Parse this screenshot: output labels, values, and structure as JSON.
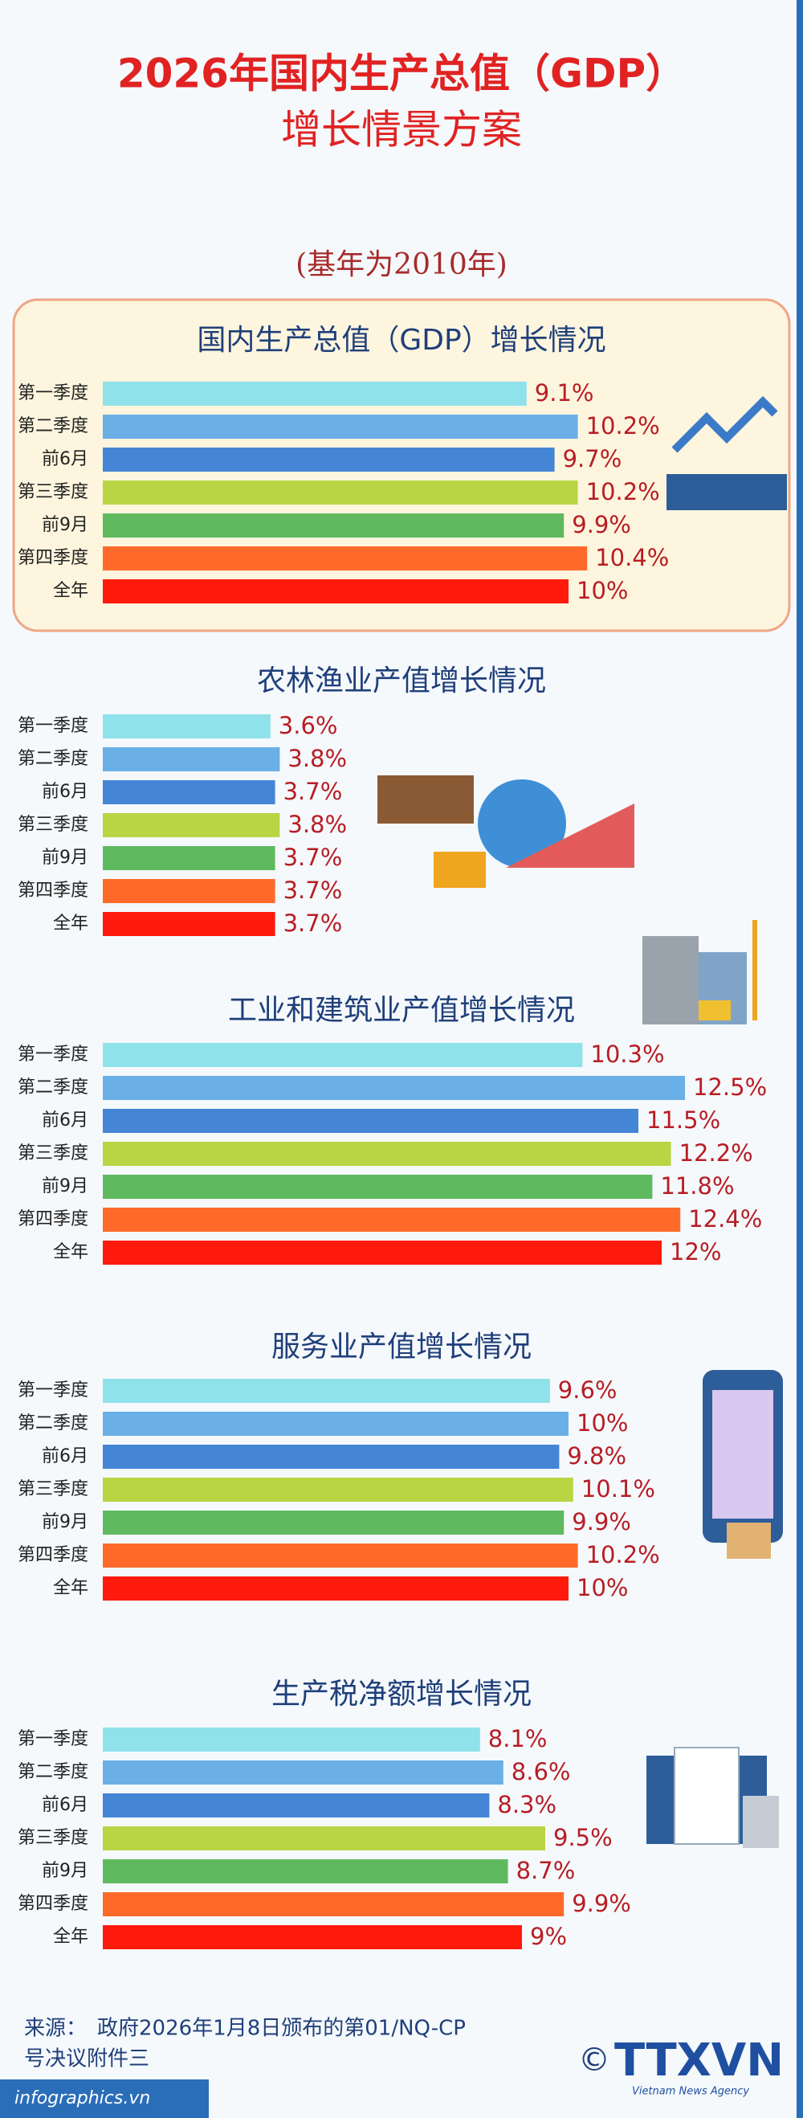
{
  "header": {
    "title_line1": "2026年国内生产总值（GDP）",
    "title_line2": "增长情景方案",
    "subtitle": "(基年为2010年)"
  },
  "chart_data": [
    {
      "type": "bar",
      "orientation": "horizontal",
      "title": "国内生产总值（GDP）增长情况",
      "categories": [
        "第一季度",
        "第二季度",
        "前6月",
        "第三季度",
        "前9月",
        "第四季度",
        "全年"
      ],
      "values": [
        9.1,
        10.2,
        9.7,
        10.2,
        9.9,
        10.4,
        10
      ],
      "value_labels": [
        "9.1%",
        "10.2%",
        "9.7%",
        "10.2%",
        "9.9%",
        "10.4%",
        "10%"
      ],
      "colors": [
        "#8fe1ea",
        "#6aafe6",
        "#4585d6",
        "#b9d544",
        "#5fba5f",
        "#ff6a2a",
        "#ff1a0c"
      ]
    },
    {
      "type": "bar",
      "orientation": "horizontal",
      "title": "农林渔业产值增长情况",
      "categories": [
        "第一季度",
        "第二季度",
        "前6月",
        "第三季度",
        "前9月",
        "第四季度",
        "全年"
      ],
      "values": [
        3.6,
        3.8,
        3.7,
        3.8,
        3.7,
        3.7,
        3.7
      ],
      "value_labels": [
        "3.6%",
        "3.8%",
        "3.7%",
        "3.8%",
        "3.7%",
        "3.7%",
        "3.7%"
      ],
      "colors": [
        "#8fe1ea",
        "#6aafe6",
        "#4585d6",
        "#b9d544",
        "#5fba5f",
        "#ff6a2a",
        "#ff1a0c"
      ]
    },
    {
      "type": "bar",
      "orientation": "horizontal",
      "title": "工业和建筑业产值增长情况",
      "categories": [
        "第一季度",
        "第二季度",
        "前6月",
        "第三季度",
        "前9月",
        "第四季度",
        "全年"
      ],
      "values": [
        10.3,
        12.5,
        11.5,
        12.2,
        11.8,
        12.4,
        12
      ],
      "value_labels": [
        "10.3%",
        "12.5%",
        "11.5%",
        "12.2%",
        "11.8%",
        "12.4%",
        "12%"
      ],
      "colors": [
        "#8fe1ea",
        "#6aafe6",
        "#4585d6",
        "#b9d544",
        "#5fba5f",
        "#ff6a2a",
        "#ff1a0c"
      ]
    },
    {
      "type": "bar",
      "orientation": "horizontal",
      "title": "服务业产值增长情况",
      "categories": [
        "第一季度",
        "第二季度",
        "前6月",
        "第三季度",
        "前9月",
        "第四季度",
        "全年"
      ],
      "values": [
        9.6,
        10,
        9.8,
        10.1,
        9.9,
        10.2,
        10
      ],
      "value_labels": [
        "9.6%",
        "10%",
        "9.8%",
        "10.1%",
        "9.9%",
        "10.2%",
        "10%"
      ],
      "colors": [
        "#8fe1ea",
        "#6aafe6",
        "#4585d6",
        "#b9d544",
        "#5fba5f",
        "#ff6a2a",
        "#ff1a0c"
      ]
    },
    {
      "type": "bar",
      "orientation": "horizontal",
      "title": "生产税净额增长情况",
      "categories": [
        "第一季度",
        "第二季度",
        "前6月",
        "第三季度",
        "前9月",
        "第四季度",
        "全年"
      ],
      "values": [
        8.1,
        8.6,
        8.3,
        9.5,
        8.7,
        9.9,
        9
      ],
      "value_labels": [
        "8.1%",
        "8.6%",
        "8.3%",
        "9.5%",
        "8.7%",
        "9.9%",
        "9%"
      ],
      "colors": [
        "#8fe1ea",
        "#6aafe6",
        "#4585d6",
        "#b9d544",
        "#5fba5f",
        "#ff6a2a",
        "#ff1a0c"
      ]
    }
  ],
  "footer": {
    "source_lines": [
      "来源：　政府2026年1月8日颁布的第01/NQ-CP",
      "号决议附件三"
    ],
    "site": "infographics.vn",
    "copyright": "©",
    "logo": "TTXVN",
    "agency": "Vietnam News Agency"
  }
}
